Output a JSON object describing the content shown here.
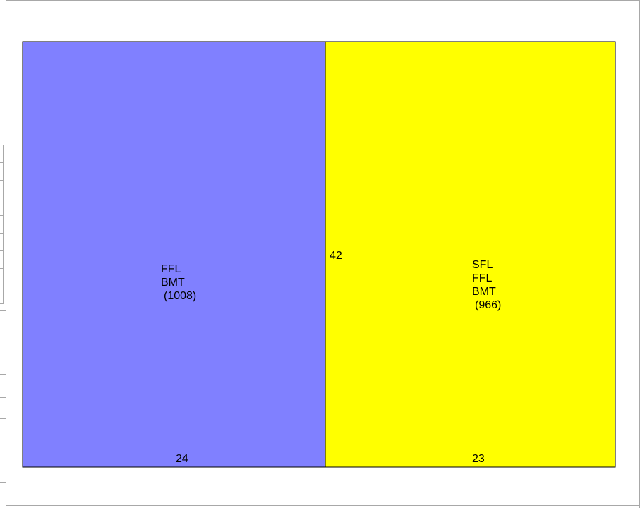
{
  "chart_data": {
    "type": "treemap",
    "tiles": [
      {
        "id": "left",
        "lines": [
          "FFL",
          "BMT",
          "(1008)"
        ],
        "bottom_value": "24",
        "color": "#8080ff"
      },
      {
        "id": "right",
        "lines": [
          "SFL",
          "FFL",
          "BMT",
          "(966)"
        ],
        "bottom_value": "23",
        "color": "#ffff00"
      }
    ],
    "divider_value": "42"
  }
}
